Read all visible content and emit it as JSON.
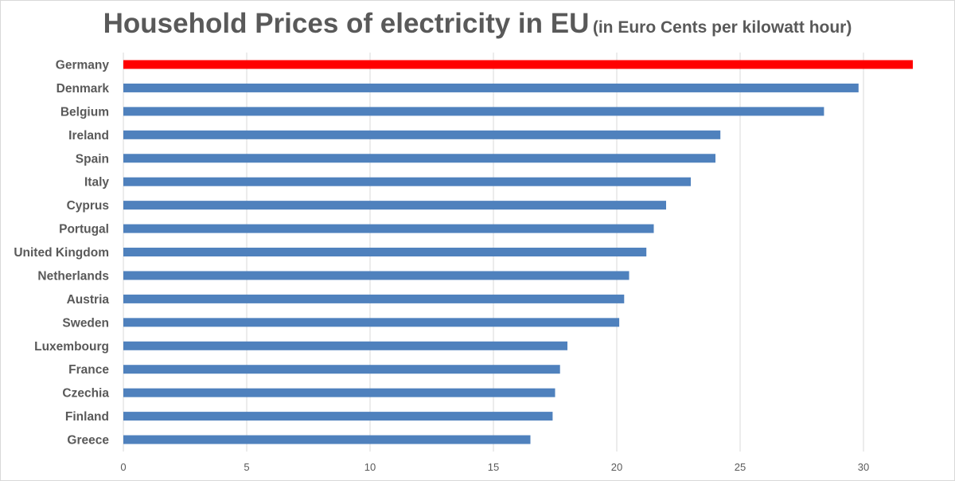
{
  "chart_data": {
    "type": "bar",
    "orientation": "horizontal",
    "title": "Household Prices of electricity in EU",
    "subtitle": "(in Euro Cents per kilowatt hour)",
    "categories": [
      "Germany",
      "Denmark",
      "Belgium",
      "Ireland",
      "Spain",
      "Italy",
      "Cyprus",
      "Portugal",
      "United Kingdom",
      "Netherlands",
      "Austria",
      "Sweden",
      "Luxembourg",
      "France",
      "Czechia",
      "Finland",
      "Greece"
    ],
    "values": [
      32.0,
      29.8,
      28.4,
      24.2,
      24.0,
      23.0,
      22.0,
      21.5,
      21.2,
      20.5,
      20.3,
      20.1,
      18.0,
      17.7,
      17.5,
      17.4,
      16.5
    ],
    "xlim": [
      0,
      32
    ],
    "xticks": [
      0,
      5,
      10,
      15,
      20,
      25,
      30
    ],
    "grid": true,
    "legend": "none",
    "colors": {
      "default": "#4f81bd",
      "highlight": "#ff0000",
      "highlight_category": "Germany",
      "grid": "#d9d9d9",
      "text": "#595959"
    }
  }
}
